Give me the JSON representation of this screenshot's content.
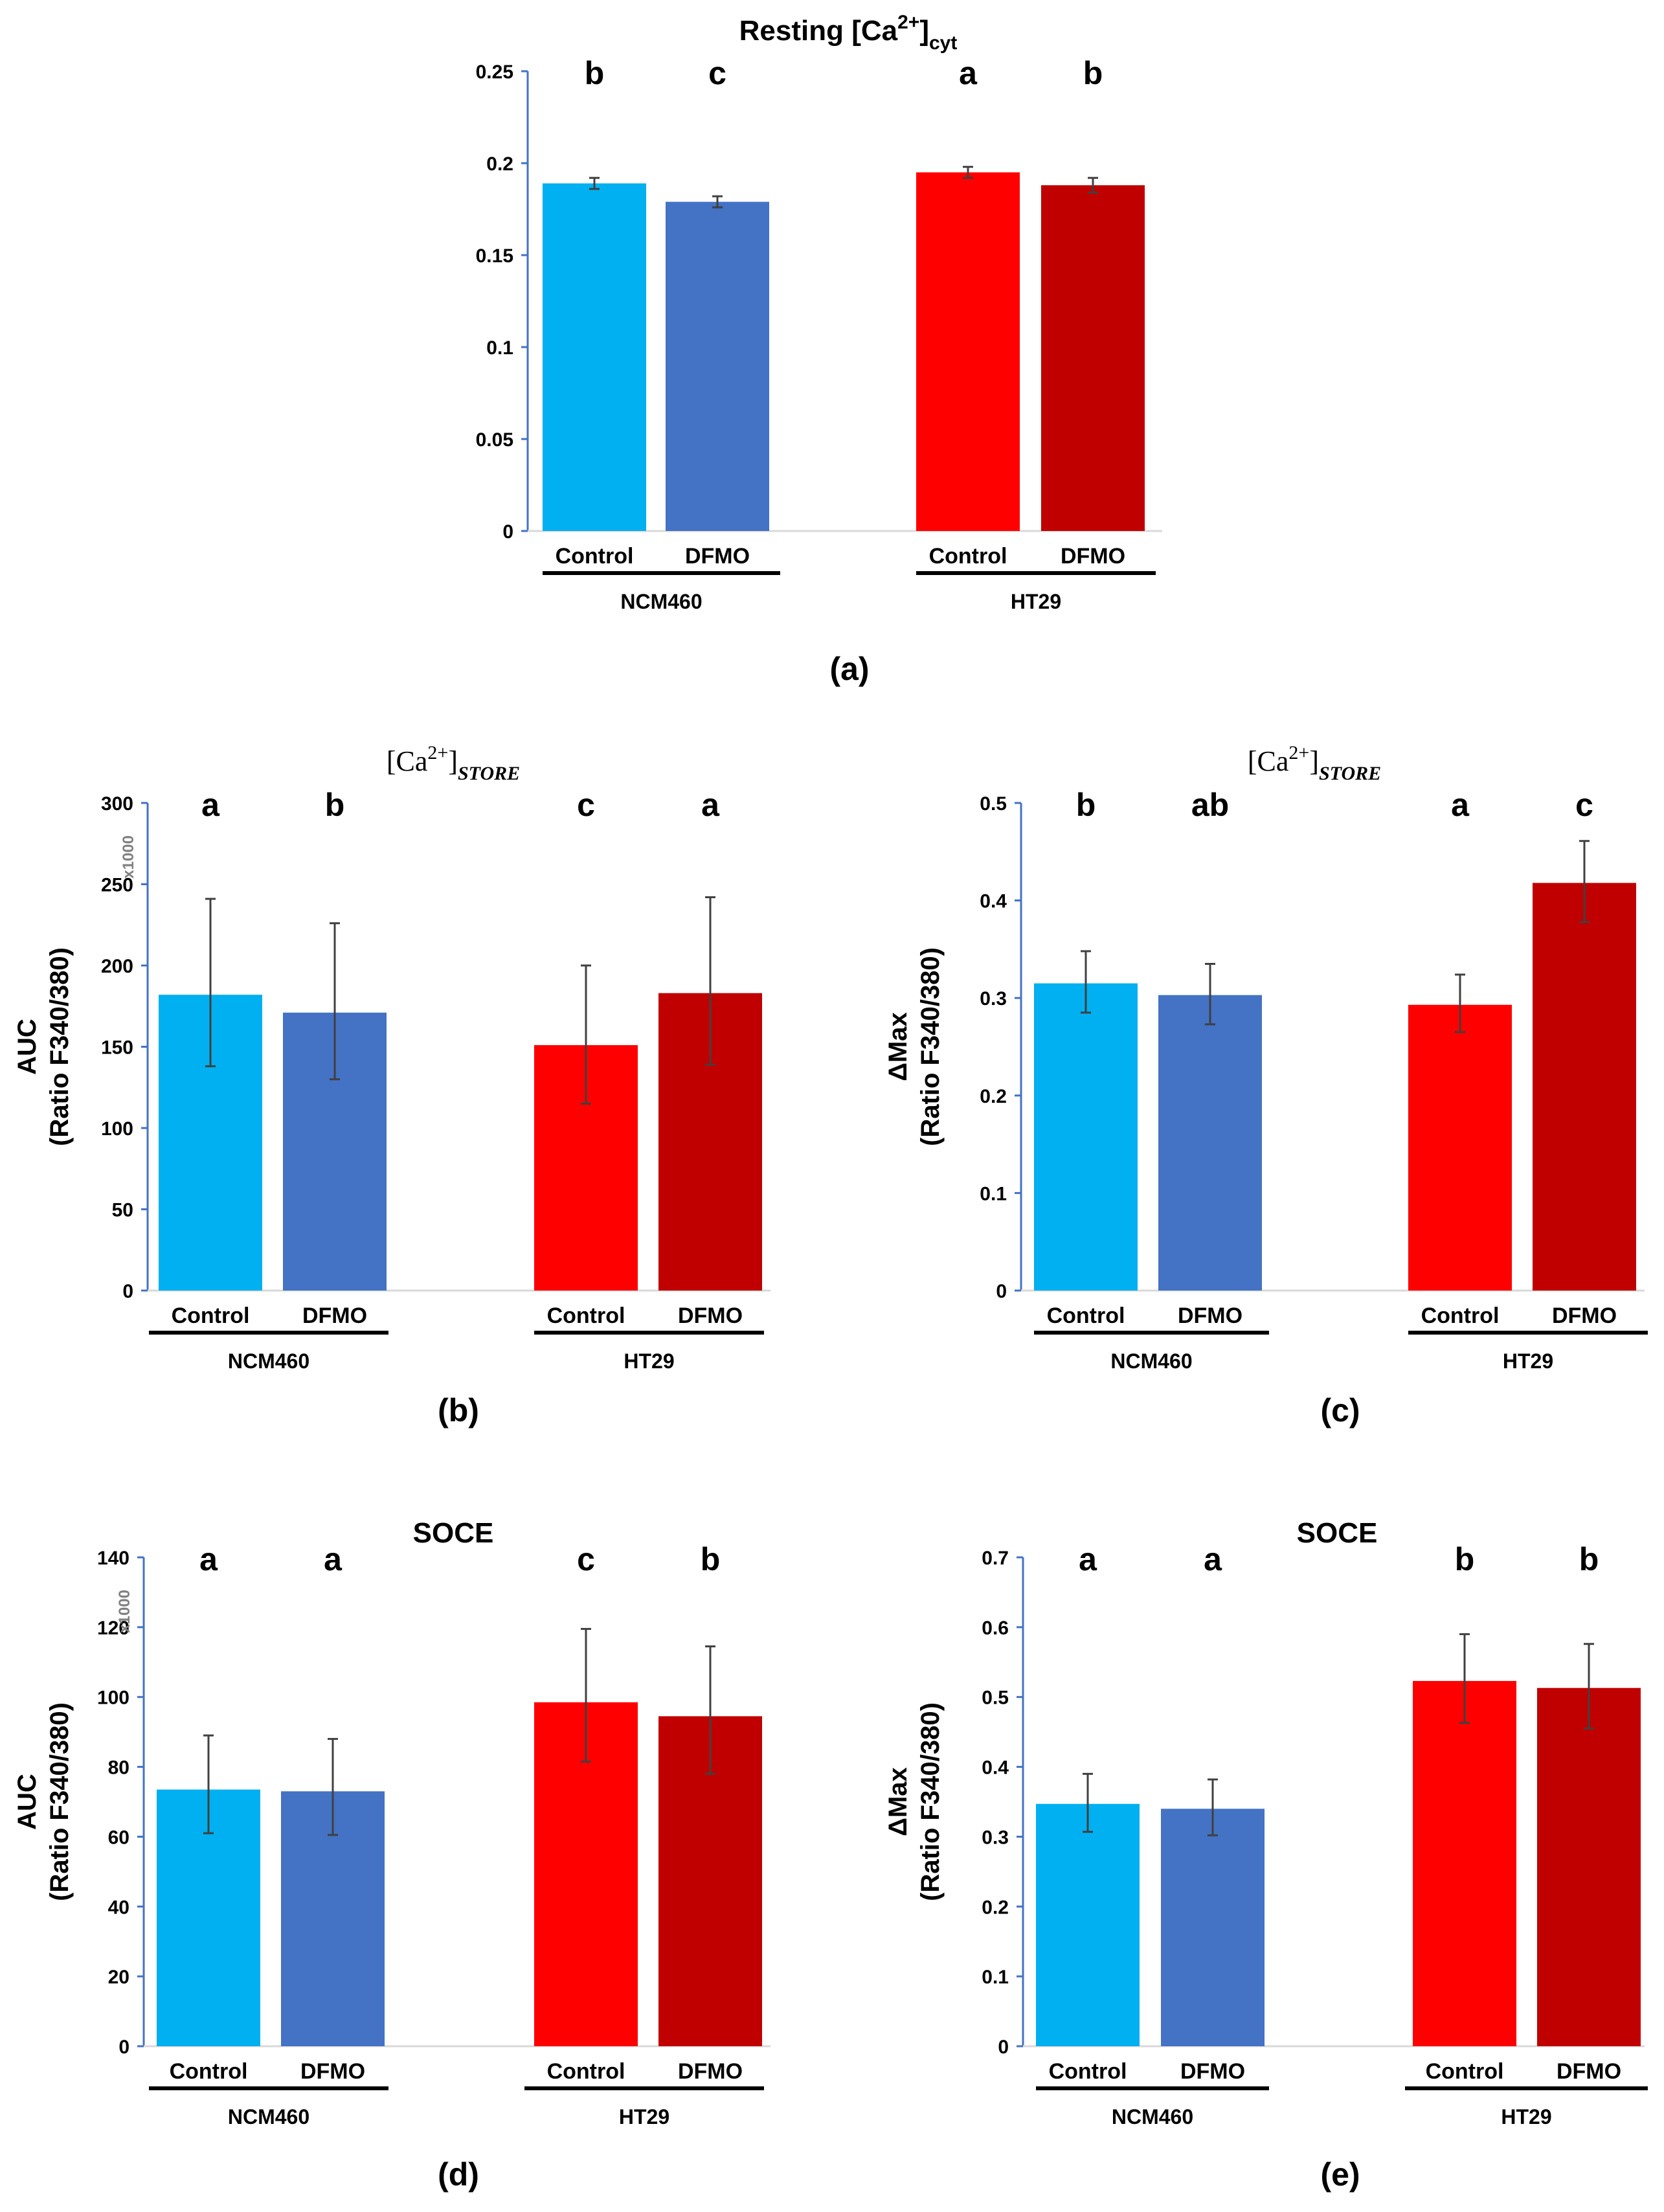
{
  "figure": {
    "colors": {
      "ncm_control": "#00B0F0",
      "ncm_dfmo": "#4472C4",
      "ht_control": "#FF0000",
      "ht_dfmo": "#C00000",
      "axis": "#4472C4",
      "errorbar": "#404040",
      "group_bar": "#000000",
      "baseline": "#D9D9D9"
    }
  },
  "chart_data": [
    {
      "id": "a",
      "type": "bar",
      "panel_label": "(a)",
      "title_parts": {
        "prefix": "Resting ",
        "species": "Ca",
        "charge": "2+",
        "sub": "cyt"
      },
      "ylabel_lines": [],
      "multiplier": "",
      "ylim": [
        0,
        0.25
      ],
      "yticks": [
        "0",
        "0.05",
        "0.1",
        "0.15",
        "0.2",
        "0.25"
      ],
      "groups": [
        "NCM460",
        "HT29"
      ],
      "categories": [
        "Control",
        "DFMO",
        "Control",
        "DFMO"
      ],
      "values": [
        0.189,
        0.179,
        0.195,
        0.188
      ],
      "err_low": [
        0.003,
        0.003,
        0.003,
        0.004
      ],
      "err_high": [
        0.003,
        0.003,
        0.003,
        0.004
      ],
      "letters": [
        "b",
        "c",
        "a",
        "b"
      ]
    },
    {
      "id": "b",
      "type": "bar",
      "panel_label": "(b)",
      "title_parts": {
        "prefix": "",
        "species": "Ca",
        "charge": "2+",
        "sub": "STORE"
      },
      "ylabel_lines": [
        "AUC",
        "(Ratio F340/380)"
      ],
      "multiplier": "x1000",
      "ylim": [
        0,
        300
      ],
      "yticks": [
        "0",
        "50",
        "100",
        "150",
        "200",
        "250",
        "300"
      ],
      "groups": [
        "NCM460",
        "HT29"
      ],
      "categories": [
        "Control",
        "DFMO",
        "Control",
        "DFMO"
      ],
      "values": [
        182,
        171,
        151,
        183
      ],
      "err_low": [
        44,
        41,
        36,
        44
      ],
      "err_high": [
        59,
        55,
        49,
        59
      ],
      "letters": [
        "a",
        "b",
        "c",
        "a"
      ]
    },
    {
      "id": "c",
      "type": "bar",
      "panel_label": "(c)",
      "title_parts": {
        "prefix": "",
        "species": "Ca",
        "charge": "2+",
        "sub": "STORE"
      },
      "ylabel_lines": [
        "ΔMax",
        "(Ratio F340/380)"
      ],
      "multiplier": "",
      "ylim": [
        0,
        0.5
      ],
      "yticks": [
        "0",
        "0.1",
        "0.2",
        "0.3",
        "0.4",
        "0.5"
      ],
      "groups": [
        "NCM460",
        "HT29"
      ],
      "categories": [
        "Control",
        "DFMO",
        "Control",
        "DFMO"
      ],
      "values": [
        0.315,
        0.303,
        0.293,
        0.418
      ],
      "err_low": [
        0.03,
        0.03,
        0.028,
        0.04
      ],
      "err_high": [
        0.033,
        0.032,
        0.031,
        0.043
      ],
      "letters": [
        "b",
        "ab",
        "a",
        "c"
      ]
    },
    {
      "id": "d",
      "type": "bar",
      "panel_label": "(d)",
      "title_parts": {
        "prefix": "SOCE",
        "species": "",
        "charge": "",
        "sub": ""
      },
      "ylabel_lines": [
        "AUC",
        "(Ratio F340/380)"
      ],
      "multiplier": "x1000",
      "ylim": [
        0,
        140
      ],
      "yticks": [
        "0",
        "20",
        "40",
        "60",
        "80",
        "100",
        "120",
        "140"
      ],
      "groups": [
        "NCM460",
        "HT29"
      ],
      "categories": [
        "Control",
        "DFMO",
        "Control",
        "DFMO"
      ],
      "values": [
        73.5,
        73,
        98.5,
        94.5
      ],
      "err_low": [
        12.5,
        12.5,
        17,
        16.5
      ],
      "err_high": [
        15.5,
        15,
        21,
        20
      ],
      "letters": [
        "a",
        "a",
        "c",
        "b"
      ]
    },
    {
      "id": "e",
      "type": "bar",
      "panel_label": "(e)",
      "title_parts": {
        "prefix": "SOCE",
        "species": "",
        "charge": "",
        "sub": ""
      },
      "ylabel_lines": [
        "ΔMax",
        "(Ratio F340/380)"
      ],
      "multiplier": "",
      "ylim": [
        0,
        0.7
      ],
      "yticks": [
        "0",
        "0.1",
        "0.2",
        "0.3",
        "0.4",
        "0.5",
        "0.6",
        "0.7"
      ],
      "groups": [
        "NCM460",
        "HT29"
      ],
      "categories": [
        "Control",
        "DFMO",
        "Control",
        "DFMO"
      ],
      "values": [
        0.347,
        0.34,
        0.523,
        0.513
      ],
      "err_low": [
        0.04,
        0.038,
        0.06,
        0.058
      ],
      "err_high": [
        0.043,
        0.042,
        0.067,
        0.063
      ],
      "letters": [
        "a",
        "a",
        "b",
        "b"
      ]
    }
  ]
}
